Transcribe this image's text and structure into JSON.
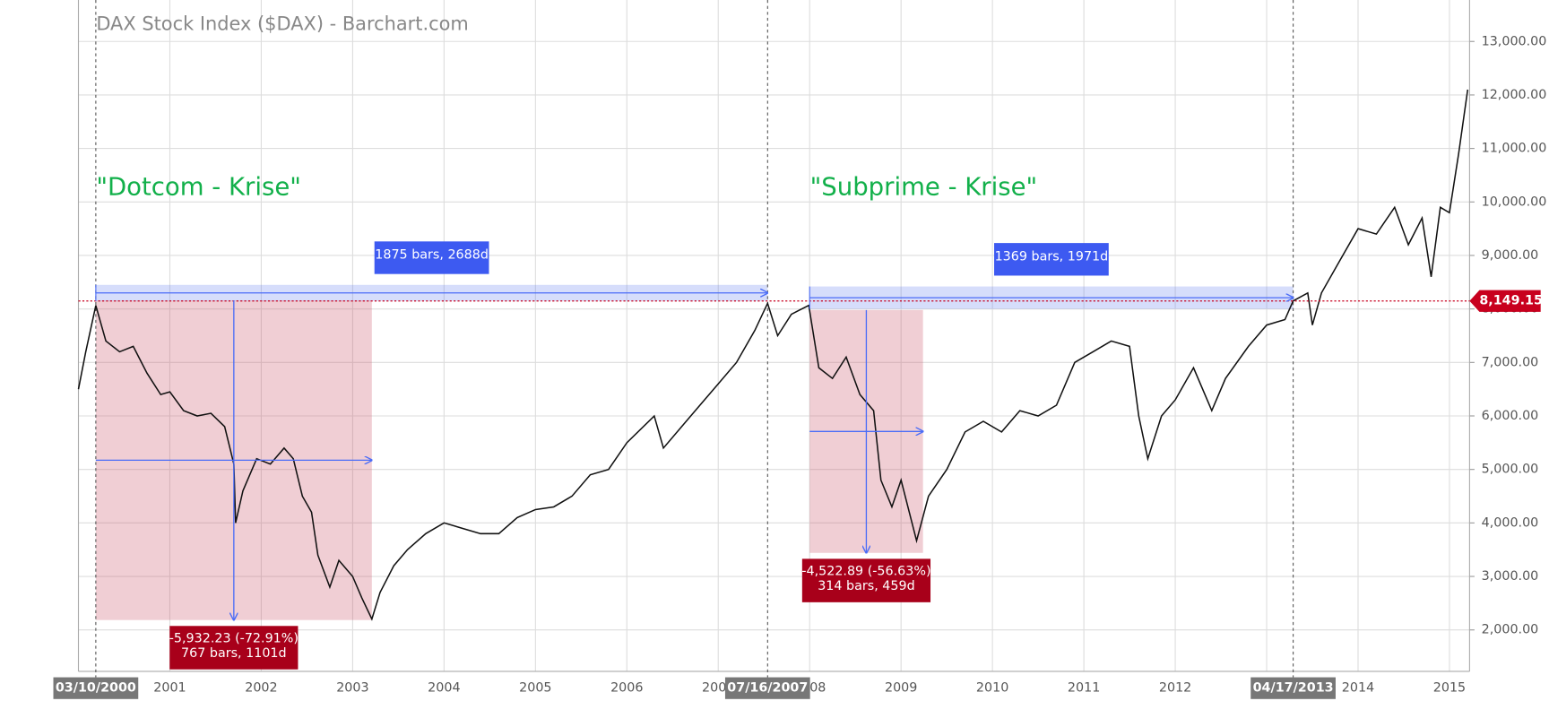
{
  "chart_data": {
    "type": "line",
    "title": "DAX Stock Index ($DAX) - Barchart.com",
    "xlim": [
      2000.0,
      2015.22
    ],
    "xticks": [
      2001,
      2002,
      2003,
      2004,
      2005,
      2006,
      2007,
      2008,
      2009,
      2010,
      2011,
      2012,
      2013,
      2014,
      2015
    ],
    "ylim": [
      1225,
      13775
    ],
    "yticks": [
      {
        "value": 2000,
        "label": "2,000.00"
      },
      {
        "value": 3000,
        "label": "3,000.00"
      },
      {
        "value": 4000,
        "label": "4,000.00"
      },
      {
        "value": 5000,
        "label": "5,000.00"
      },
      {
        "value": 6000,
        "label": "6,000.00"
      },
      {
        "value": 7000,
        "label": "7,000.00"
      },
      {
        "value": 8000,
        "label": "8,000.00"
      },
      {
        "value": 9000,
        "label": "9,000.00"
      },
      {
        "value": 10000,
        "label": "10,000.00"
      },
      {
        "value": 11000,
        "label": "11,000.00"
      },
      {
        "value": 12000,
        "label": "12,000.00"
      },
      {
        "value": 13000,
        "label": "13,000.00"
      }
    ],
    "grid": true,
    "series": [
      {
        "color": "#111111",
        "x": [
          2000.0,
          2000.08,
          2000.19,
          2000.3,
          2000.45,
          2000.6,
          2000.75,
          2000.9,
          2001.0,
          2001.15,
          2001.3,
          2001.45,
          2001.6,
          2001.7,
          2001.72,
          2001.8,
          2001.95,
          2002.1,
          2002.25,
          2002.35,
          2002.45,
          2002.55,
          2002.62,
          2002.75,
          2002.85,
          2003.0,
          2003.1,
          2003.21,
          2003.3,
          2003.45,
          2003.6,
          2003.8,
          2004.0,
          2004.2,
          2004.4,
          2004.6,
          2004.8,
          2005.0,
          2005.2,
          2005.4,
          2005.6,
          2005.8,
          2006.0,
          2006.3,
          2006.4,
          2006.6,
          2006.8,
          2007.0,
          2007.2,
          2007.4,
          2007.54,
          2007.65,
          2007.8,
          2007.99,
          2008.1,
          2008.25,
          2008.4,
          2008.55,
          2008.7,
          2008.78,
          2008.9,
          2009.0,
          2009.17,
          2009.3,
          2009.5,
          2009.7,
          2009.9,
          2010.1,
          2010.3,
          2010.5,
          2010.7,
          2010.9,
          2011.1,
          2011.3,
          2011.5,
          2011.6,
          2011.7,
          2011.85,
          2012.0,
          2012.2,
          2012.4,
          2012.55,
          2012.8,
          2013.0,
          2013.2,
          2013.29,
          2013.45,
          2013.5,
          2013.6,
          2013.8,
          2014.0,
          2014.2,
          2014.4,
          2014.55,
          2014.7,
          2014.8,
          2014.9,
          2015.0,
          2015.1,
          2015.2
        ],
        "values": [
          6500,
          7200,
          8065,
          7400,
          7200,
          7300,
          6800,
          6400,
          6450,
          6100,
          6000,
          6050,
          5800,
          5100,
          4000,
          4600,
          5200,
          5100,
          5400,
          5200,
          4500,
          4200,
          3400,
          2800,
          3300,
          3000,
          2600,
          2203,
          2700,
          3200,
          3500,
          3800,
          4000,
          3900,
          3800,
          3800,
          4100,
          4250,
          4300,
          4500,
          4900,
          5000,
          5500,
          6000,
          5400,
          5800,
          6200,
          6600,
          7000,
          7600,
          8105,
          7500,
          7900,
          8067,
          6900,
          6700,
          7100,
          6400,
          6100,
          4800,
          4300,
          4800,
          3666,
          4500,
          5000,
          5700,
          5900,
          5700,
          6100,
          6000,
          6200,
          7000,
          7200,
          7400,
          7300,
          6000,
          5200,
          6000,
          6300,
          6900,
          6100,
          6700,
          7300,
          7700,
          7800,
          8149,
          8300,
          7700,
          8300,
          8900,
          9500,
          9400,
          9900,
          9200,
          9700,
          8600,
          9900,
          9800,
          10900,
          12100
        ]
      }
    ],
    "price_line": {
      "value": 8149.15,
      "label": "8,149.15",
      "color": "#c8001e"
    },
    "date_markers": [
      {
        "x": 2000.19,
        "label": "03/10/2000"
      },
      {
        "x": 2007.54,
        "label": "07/16/2007"
      },
      {
        "x": 2013.29,
        "label": "04/17/2013"
      }
    ],
    "spans": [
      {
        "x": [
          2000.19,
          2007.54
        ],
        "y": [
          8149,
          8450
        ],
        "label": "1875 bars, 2688d"
      },
      {
        "x": [
          2008.0,
          2013.29
        ],
        "y": [
          8000,
          8420
        ],
        "label": "1369 bars, 1971d"
      }
    ],
    "measures": [
      {
        "x": [
          2000.19,
          2003.21
        ],
        "y": [
          8160,
          2185
        ],
        "labels": [
          "-5,932.23 (-72.91%)",
          "767 bars, 1101d"
        ]
      },
      {
        "x": [
          2008.0,
          2009.24
        ],
        "y": [
          7980,
          3440
        ],
        "labels": [
          "-4,522.89 (-56.63%)",
          "314 bars, 459d"
        ]
      }
    ],
    "annotations": [
      {
        "text": "\"Dotcom - Krise\""
      },
      {
        "text": "\"Subprime - Krise\""
      }
    ]
  }
}
